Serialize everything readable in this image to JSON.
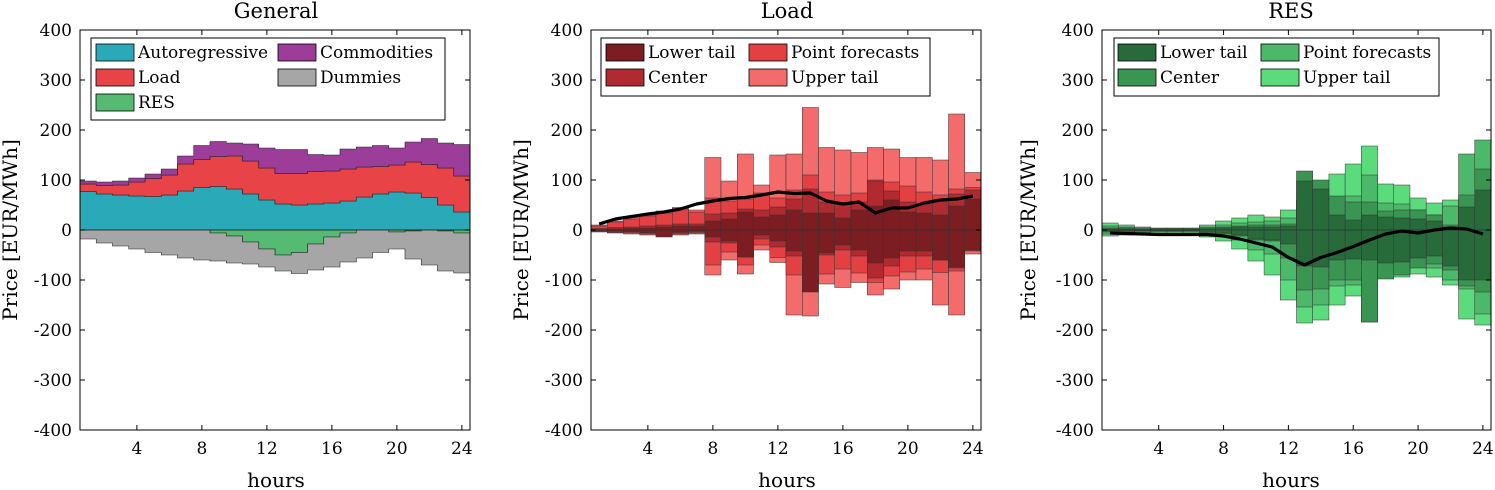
{
  "chart_data": [
    {
      "type": "area",
      "id": "general",
      "title": "General",
      "xlabel": "hours",
      "ylabel": "Price [EUR/MWh]",
      "xlim": [
        0.5,
        24.5
      ],
      "ylim": [
        -400,
        400
      ],
      "xticks": [
        4,
        8,
        12,
        16,
        20,
        24
      ],
      "yticks": [
        -400,
        -300,
        -200,
        -100,
        0,
        100,
        200,
        300,
        400
      ],
      "x": [
        1,
        2,
        3,
        4,
        5,
        6,
        7,
        8,
        9,
        10,
        11,
        12,
        13,
        14,
        15,
        16,
        17,
        18,
        19,
        20,
        21,
        22,
        23,
        24
      ],
      "positive_stack": [
        {
          "name": "Autoregressive",
          "color": "#2aaab9",
          "values": [
            77,
            72,
            70,
            68,
            67,
            70,
            78,
            85,
            87,
            82,
            72,
            60,
            52,
            50,
            52,
            54,
            58,
            66,
            72,
            76,
            74,
            65,
            50,
            36
          ]
        },
        {
          "name": "Load",
          "color": "#e84346",
          "values": [
            15,
            17,
            20,
            28,
            36,
            40,
            54,
            56,
            60,
            66,
            66,
            64,
            61,
            63,
            65,
            64,
            64,
            60,
            55,
            54,
            62,
            66,
            74,
            72
          ]
        },
        {
          "name": "Commodities",
          "color": "#9b3d99",
          "values": [
            6,
            7,
            8,
            8,
            9,
            12,
            16,
            28,
            30,
            26,
            34,
            40,
            48,
            48,
            34,
            32,
            40,
            40,
            42,
            34,
            40,
            52,
            50,
            63
          ]
        }
      ],
      "negative_stack": [
        {
          "name": "RES",
          "color": "#55bb72",
          "values": [
            0,
            0,
            0,
            0,
            0,
            0,
            0,
            0,
            -6,
            -12,
            -24,
            -38,
            -50,
            -45,
            -28,
            -14,
            -6,
            0,
            0,
            -4,
            -2,
            0,
            -2,
            -6
          ]
        },
        {
          "name": "Dummies",
          "color": "#a6a6a6",
          "values": [
            -18,
            -26,
            -32,
            -38,
            -45,
            -50,
            -56,
            -60,
            -56,
            -54,
            -44,
            -36,
            -32,
            -42,
            -52,
            -60,
            -58,
            -56,
            -45,
            -34,
            -56,
            -70,
            -80,
            -80
          ]
        }
      ],
      "legend": {
        "location": "top-left",
        "columns": 2,
        "entries": [
          {
            "label": "Autoregressive",
            "color": "#2aaab9"
          },
          {
            "label": "Commodities",
            "color": "#9b3d99"
          },
          {
            "label": "Load",
            "color": "#e84346"
          },
          {
            "label": "Dummies",
            "color": "#a6a6a6"
          },
          {
            "label": "RES",
            "color": "#55bb72"
          }
        ]
      }
    },
    {
      "type": "bar",
      "id": "load",
      "title": "Load",
      "xlabel": "hours",
      "ylabel": "Price [EUR/MWh]",
      "xlim": [
        0.5,
        24.5
      ],
      "ylim": [
        -400,
        400
      ],
      "xticks": [
        4,
        8,
        12,
        16,
        20,
        24
      ],
      "yticks": [
        -400,
        -300,
        -200,
        -100,
        0,
        100,
        200,
        300,
        400
      ],
      "x": [
        1,
        2,
        3,
        4,
        5,
        6,
        7,
        8,
        9,
        10,
        11,
        12,
        13,
        14,
        15,
        16,
        17,
        18,
        19,
        20,
        21,
        22,
        23,
        24
      ],
      "series": [
        {
          "name": "Upper tail",
          "color": "#f36b6b",
          "upper": [
            10,
            18,
            25,
            30,
            38,
            45,
            40,
            145,
            98,
            152,
            90,
            150,
            152,
            245,
            165,
            160,
            155,
            165,
            162,
            145,
            145,
            140,
            232,
            115
          ],
          "lower": [
            -4,
            -6,
            -8,
            -10,
            -10,
            -10,
            -8,
            -90,
            -60,
            -88,
            -40,
            -65,
            -170,
            -172,
            -108,
            -115,
            -105,
            -130,
            -118,
            -100,
            -100,
            -150,
            -170,
            -48
          ]
        },
        {
          "name": "Point forecasts",
          "color": "#e34044",
          "upper": [
            8,
            16,
            22,
            28,
            34,
            42,
            36,
            64,
            58,
            62,
            74,
            64,
            80,
            110,
            76,
            70,
            74,
            100,
            96,
            88,
            76,
            70,
            82,
            85
          ],
          "lower": [
            -3,
            -5,
            -6,
            -8,
            -8,
            -8,
            -6,
            -70,
            -44,
            -70,
            -30,
            -55,
            -90,
            -108,
            -88,
            -78,
            -86,
            -105,
            -92,
            -84,
            -78,
            -85,
            -82,
            -42
          ]
        },
        {
          "name": "Center",
          "color": "#b02a30",
          "upper": [
            3,
            5,
            6,
            8,
            10,
            12,
            12,
            32,
            34,
            42,
            40,
            46,
            62,
            82,
            56,
            52,
            56,
            98,
            78,
            56,
            52,
            58,
            72,
            80
          ],
          "lower": [
            -2,
            -4,
            -4,
            -6,
            -12,
            -6,
            -4,
            -24,
            -26,
            -54,
            -18,
            -34,
            -52,
            -104,
            -50,
            -40,
            -52,
            -96,
            -72,
            -52,
            -52,
            -60,
            -76,
            -40
          ]
        },
        {
          "name": "Lower tail",
          "color": "#7c1d21",
          "upper": [
            1,
            2,
            3,
            4,
            6,
            8,
            8,
            18,
            22,
            36,
            26,
            30,
            40,
            34,
            34,
            24,
            40,
            48,
            60,
            36,
            34,
            30,
            48,
            62
          ],
          "lower": [
            -1,
            -2,
            -3,
            -5,
            -14,
            -4,
            -2,
            -14,
            -22,
            -54,
            -10,
            -22,
            -42,
            -124,
            -46,
            -30,
            -40,
            -66,
            -56,
            -42,
            -42,
            -60,
            -74,
            -40
          ]
        }
      ],
      "point_forecast_line": {
        "name": "Point forecasts",
        "values": [
          12,
          22,
          27,
          32,
          36,
          42,
          52,
          58,
          63,
          65,
          70,
          76,
          73,
          74,
          58,
          52,
          56,
          34,
          44,
          44,
          54,
          60,
          62,
          68
        ]
      },
      "legend": {
        "location": "top-left",
        "columns": 2,
        "entries": [
          {
            "label": "Lower tail",
            "color": "#7c1d21"
          },
          {
            "label": "Point forecasts",
            "color": "#e34044"
          },
          {
            "label": "Center",
            "color": "#b02a30"
          },
          {
            "label": "Upper tail",
            "color": "#f36b6b"
          }
        ]
      }
    },
    {
      "type": "bar",
      "id": "res",
      "title": "RES",
      "xlabel": "hours",
      "ylabel": "Price [EUR/MWh]",
      "xlim": [
        0.5,
        24.5
      ],
      "ylim": [
        -400,
        400
      ],
      "xticks": [
        4,
        8,
        12,
        16,
        20,
        24
      ],
      "yticks": [
        -400,
        -300,
        -200,
        -100,
        0,
        100,
        200,
        300,
        400
      ],
      "x": [
        1,
        2,
        3,
        4,
        5,
        6,
        7,
        8,
        9,
        10,
        11,
        12,
        13,
        14,
        15,
        16,
        17,
        18,
        19,
        20,
        21,
        22,
        23,
        24
      ],
      "series": [
        {
          "name": "Upper tail",
          "color": "#5cdb7d",
          "upper": [
            14,
            10,
            6,
            4,
            4,
            4,
            10,
            18,
            24,
            30,
            26,
            40,
            60,
            60,
            112,
            132,
            168,
            92,
            90,
            64,
            54,
            60,
            52,
            178
          ],
          "lower": [
            -12,
            -10,
            -8,
            -6,
            -6,
            -8,
            -14,
            -22,
            -38,
            -62,
            -90,
            -140,
            -186,
            -180,
            -150,
            -132,
            -184,
            -96,
            -94,
            -88,
            -94,
            -110,
            -178,
            -190
          ]
        },
        {
          "name": "Point forecasts",
          "color": "#4cb86a",
          "upper": [
            8,
            6,
            4,
            3,
            3,
            3,
            6,
            10,
            14,
            16,
            18,
            24,
            60,
            58,
            66,
            68,
            110,
            54,
            52,
            40,
            30,
            48,
            152,
            180
          ],
          "lower": [
            -8,
            -6,
            -4,
            -3,
            -3,
            -4,
            -8,
            -12,
            -20,
            -40,
            -48,
            -100,
            -154,
            -150,
            -112,
            -110,
            -180,
            -82,
            -84,
            -68,
            -76,
            -100,
            -118,
            -168
          ]
        },
        {
          "name": "Center",
          "color": "#3a9452",
          "upper": [
            4,
            4,
            2,
            2,
            2,
            2,
            4,
            6,
            8,
            10,
            10,
            12,
            118,
            100,
            68,
            56,
            56,
            38,
            40,
            40,
            30,
            10,
            70,
            122
          ],
          "lower": [
            -4,
            -4,
            -2,
            -2,
            -2,
            -2,
            -6,
            -8,
            -12,
            -20,
            -22,
            -56,
            -120,
            -118,
            -100,
            -100,
            -184,
            -98,
            -90,
            -76,
            -68,
            -80,
            -112,
            -124
          ]
        },
        {
          "name": "Lower tail",
          "color": "#276b3a",
          "upper": [
            2,
            2,
            1,
            1,
            1,
            1,
            2,
            4,
            6,
            6,
            6,
            8,
            98,
            82,
            30,
            20,
            30,
            26,
            24,
            22,
            18,
            6,
            46,
            80
          ],
          "lower": [
            -2,
            -2,
            -1,
            -1,
            -1,
            -1,
            -4,
            -6,
            -10,
            -18,
            -20,
            -28,
            -72,
            -74,
            -60,
            -58,
            -60,
            -66,
            -64,
            -56,
            -52,
            -72,
            -100,
            -100
          ]
        }
      ],
      "point_forecast_line": {
        "name": "Point forecasts",
        "values": [
          -6,
          -7,
          -8,
          -9,
          -9,
          -9,
          -9,
          -12,
          -18,
          -26,
          -34,
          -55,
          -70,
          -55,
          -45,
          -33,
          -20,
          -8,
          -2,
          -6,
          0,
          4,
          2,
          -8
        ]
      },
      "legend": {
        "location": "top-left",
        "columns": 2,
        "entries": [
          {
            "label": "Lower tail",
            "color": "#276b3a"
          },
          {
            "label": "Point forecasts",
            "color": "#4cb86a"
          },
          {
            "label": "Center",
            "color": "#3a9452"
          },
          {
            "label": "Upper tail",
            "color": "#5cdb7d"
          }
        ]
      }
    }
  ]
}
